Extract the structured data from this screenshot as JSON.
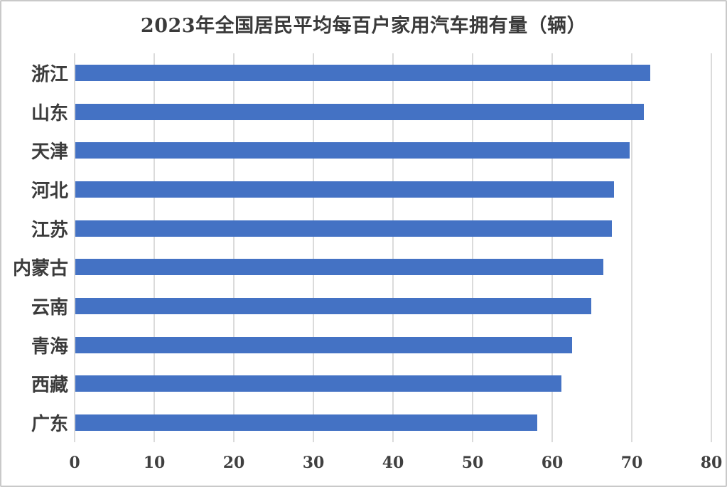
{
  "chart_data": {
    "type": "bar",
    "orientation": "horizontal",
    "title": "2023年全国居民平均每百户家用汽车拥有量（辆）",
    "xlabel": "",
    "ylabel": "",
    "categories": [
      "浙江",
      "山东",
      "天津",
      "河北",
      "江苏",
      "内蒙古",
      "云南",
      "青海",
      "西藏",
      "广东"
    ],
    "values": [
      72.2,
      71.4,
      69.6,
      67.7,
      67.4,
      66.3,
      64.8,
      62.4,
      61.1,
      58.0
    ],
    "xlim": [
      0,
      80
    ],
    "xticks": [
      0,
      10,
      20,
      30,
      40,
      50,
      60,
      70,
      80
    ],
    "grid": "vertical",
    "legend": "none",
    "colors": {
      "bar": "#4472c4",
      "gridline": "#dbdbdb",
      "tick_text": "#404040",
      "category_text": "#3b3b3b",
      "title_text": "#3a3a3a",
      "canvas_border": "#c9c9c9",
      "background": "#ffffff"
    }
  }
}
